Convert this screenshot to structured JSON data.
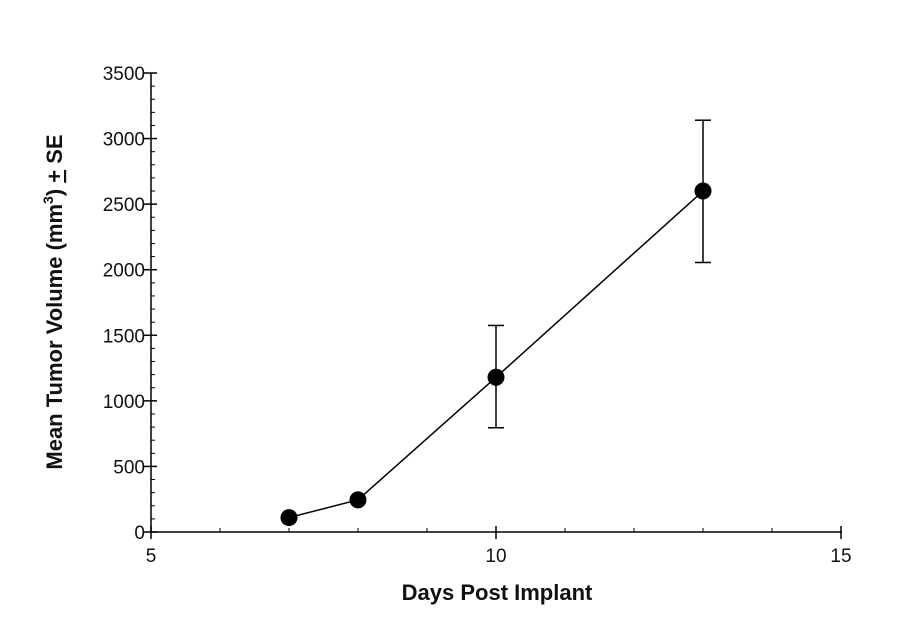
{
  "chart_data": {
    "type": "scatter",
    "xlabel": "Days Post Implant",
    "ylabel": {
      "prefix": "Mean Tumor Volume (mm",
      "superscript": "3",
      "suffix": ") ",
      "underlined": "+",
      "trailer": " SE"
    },
    "xlim": [
      5,
      15
    ],
    "ylim": [
      0,
      3500
    ],
    "x_ticks": [
      5,
      10,
      15
    ],
    "y_ticks": [
      0,
      500,
      1000,
      1500,
      2000,
      2500,
      3000,
      3500
    ],
    "x_minor_step": 1,
    "y_minor_step": 100,
    "grid": false,
    "connected": true,
    "marker": "filled-circle",
    "color": "#000000",
    "series": [
      {
        "x": [
          7,
          8,
          10,
          13
        ],
        "y": [
          110,
          245,
          1180,
          2600
        ],
        "error_low": [
          null,
          null,
          795,
          2055
        ],
        "error_high": [
          null,
          null,
          1575,
          3140
        ]
      }
    ]
  }
}
